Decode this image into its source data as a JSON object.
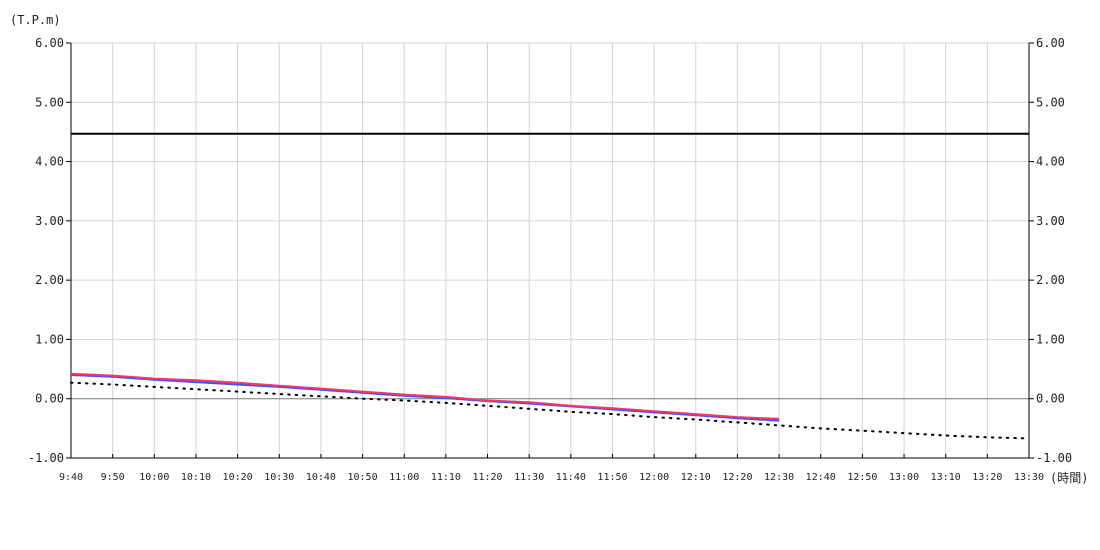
{
  "chart_data": {
    "type": "line",
    "y_unit_label": "(T.P.m)",
    "x_unit_label": "(時間)",
    "ylim": [
      -1.0,
      6.0
    ],
    "y_ticks": [
      {
        "value": 6.0,
        "label": "6.00"
      },
      {
        "value": 5.0,
        "label": "5.00"
      },
      {
        "value": 4.0,
        "label": "4.00"
      },
      {
        "value": 3.0,
        "label": "3.00"
      },
      {
        "value": 2.0,
        "label": "2.00"
      },
      {
        "value": 1.0,
        "label": "1.00"
      },
      {
        "value": 0.0,
        "label": "0.00"
      },
      {
        "value": -1.0,
        "label": "-1.00"
      }
    ],
    "x_ticks": [
      "9:40",
      "9:50",
      "10:00",
      "10:10",
      "10:20",
      "10:30",
      "10:40",
      "10:50",
      "11:00",
      "11:10",
      "11:20",
      "11:30",
      "11:40",
      "11:50",
      "12:00",
      "12:10",
      "12:20",
      "12:30",
      "12:40",
      "12:50",
      "13:00",
      "13:10",
      "13:20",
      "13:30"
    ],
    "grid": true,
    "reference_line": {
      "value": 4.47,
      "color": "#000000"
    },
    "series": [
      {
        "id": "observed-red",
        "color": "#ff3366",
        "style": "solid",
        "x": [
          "9:40",
          "9:50",
          "10:00",
          "10:10",
          "10:20",
          "10:30",
          "10:40",
          "10:50",
          "11:00",
          "11:10",
          "11:20",
          "11:30",
          "11:40",
          "11:50",
          "12:00",
          "12:10",
          "12:20",
          "12:30"
        ],
        "values": [
          0.42,
          0.39,
          0.34,
          0.31,
          0.27,
          0.22,
          0.17,
          0.12,
          0.07,
          0.03,
          -0.03,
          -0.06,
          -0.12,
          -0.16,
          -0.21,
          -0.26,
          -0.31,
          -0.34
        ]
      },
      {
        "id": "observed-blue",
        "color": "#3355ff",
        "style": "solid",
        "x": [
          "9:40",
          "9:50",
          "10:00",
          "10:10",
          "10:20",
          "10:30",
          "10:40",
          "10:50",
          "11:00",
          "11:10",
          "11:20",
          "11:30",
          "11:40",
          "11:50",
          "12:00",
          "12:10",
          "12:20",
          "12:30"
        ],
        "values": [
          0.4,
          0.37,
          0.32,
          0.28,
          0.24,
          0.2,
          0.15,
          0.1,
          0.05,
          0.01,
          -0.04,
          -0.08,
          -0.13,
          -0.18,
          -0.23,
          -0.28,
          -0.33,
          -0.37
        ]
      },
      {
        "id": "predicted-dotted",
        "color": "#000000",
        "style": "dotted",
        "x": [
          "9:40",
          "9:50",
          "10:00",
          "10:10",
          "10:20",
          "10:30",
          "10:40",
          "10:50",
          "11:00",
          "11:10",
          "11:20",
          "11:30",
          "11:40",
          "11:50",
          "12:00",
          "12:10",
          "12:20",
          "12:30",
          "12:40",
          "12:50",
          "13:00",
          "13:10",
          "13:20",
          "13:30"
        ],
        "values": [
          0.27,
          0.24,
          0.2,
          0.16,
          0.12,
          0.08,
          0.04,
          0.0,
          -0.03,
          -0.07,
          -0.12,
          -0.17,
          -0.22,
          -0.26,
          -0.31,
          -0.35,
          -0.4,
          -0.45,
          -0.5,
          -0.54,
          -0.58,
          -0.62,
          -0.65,
          -0.67
        ]
      }
    ]
  }
}
